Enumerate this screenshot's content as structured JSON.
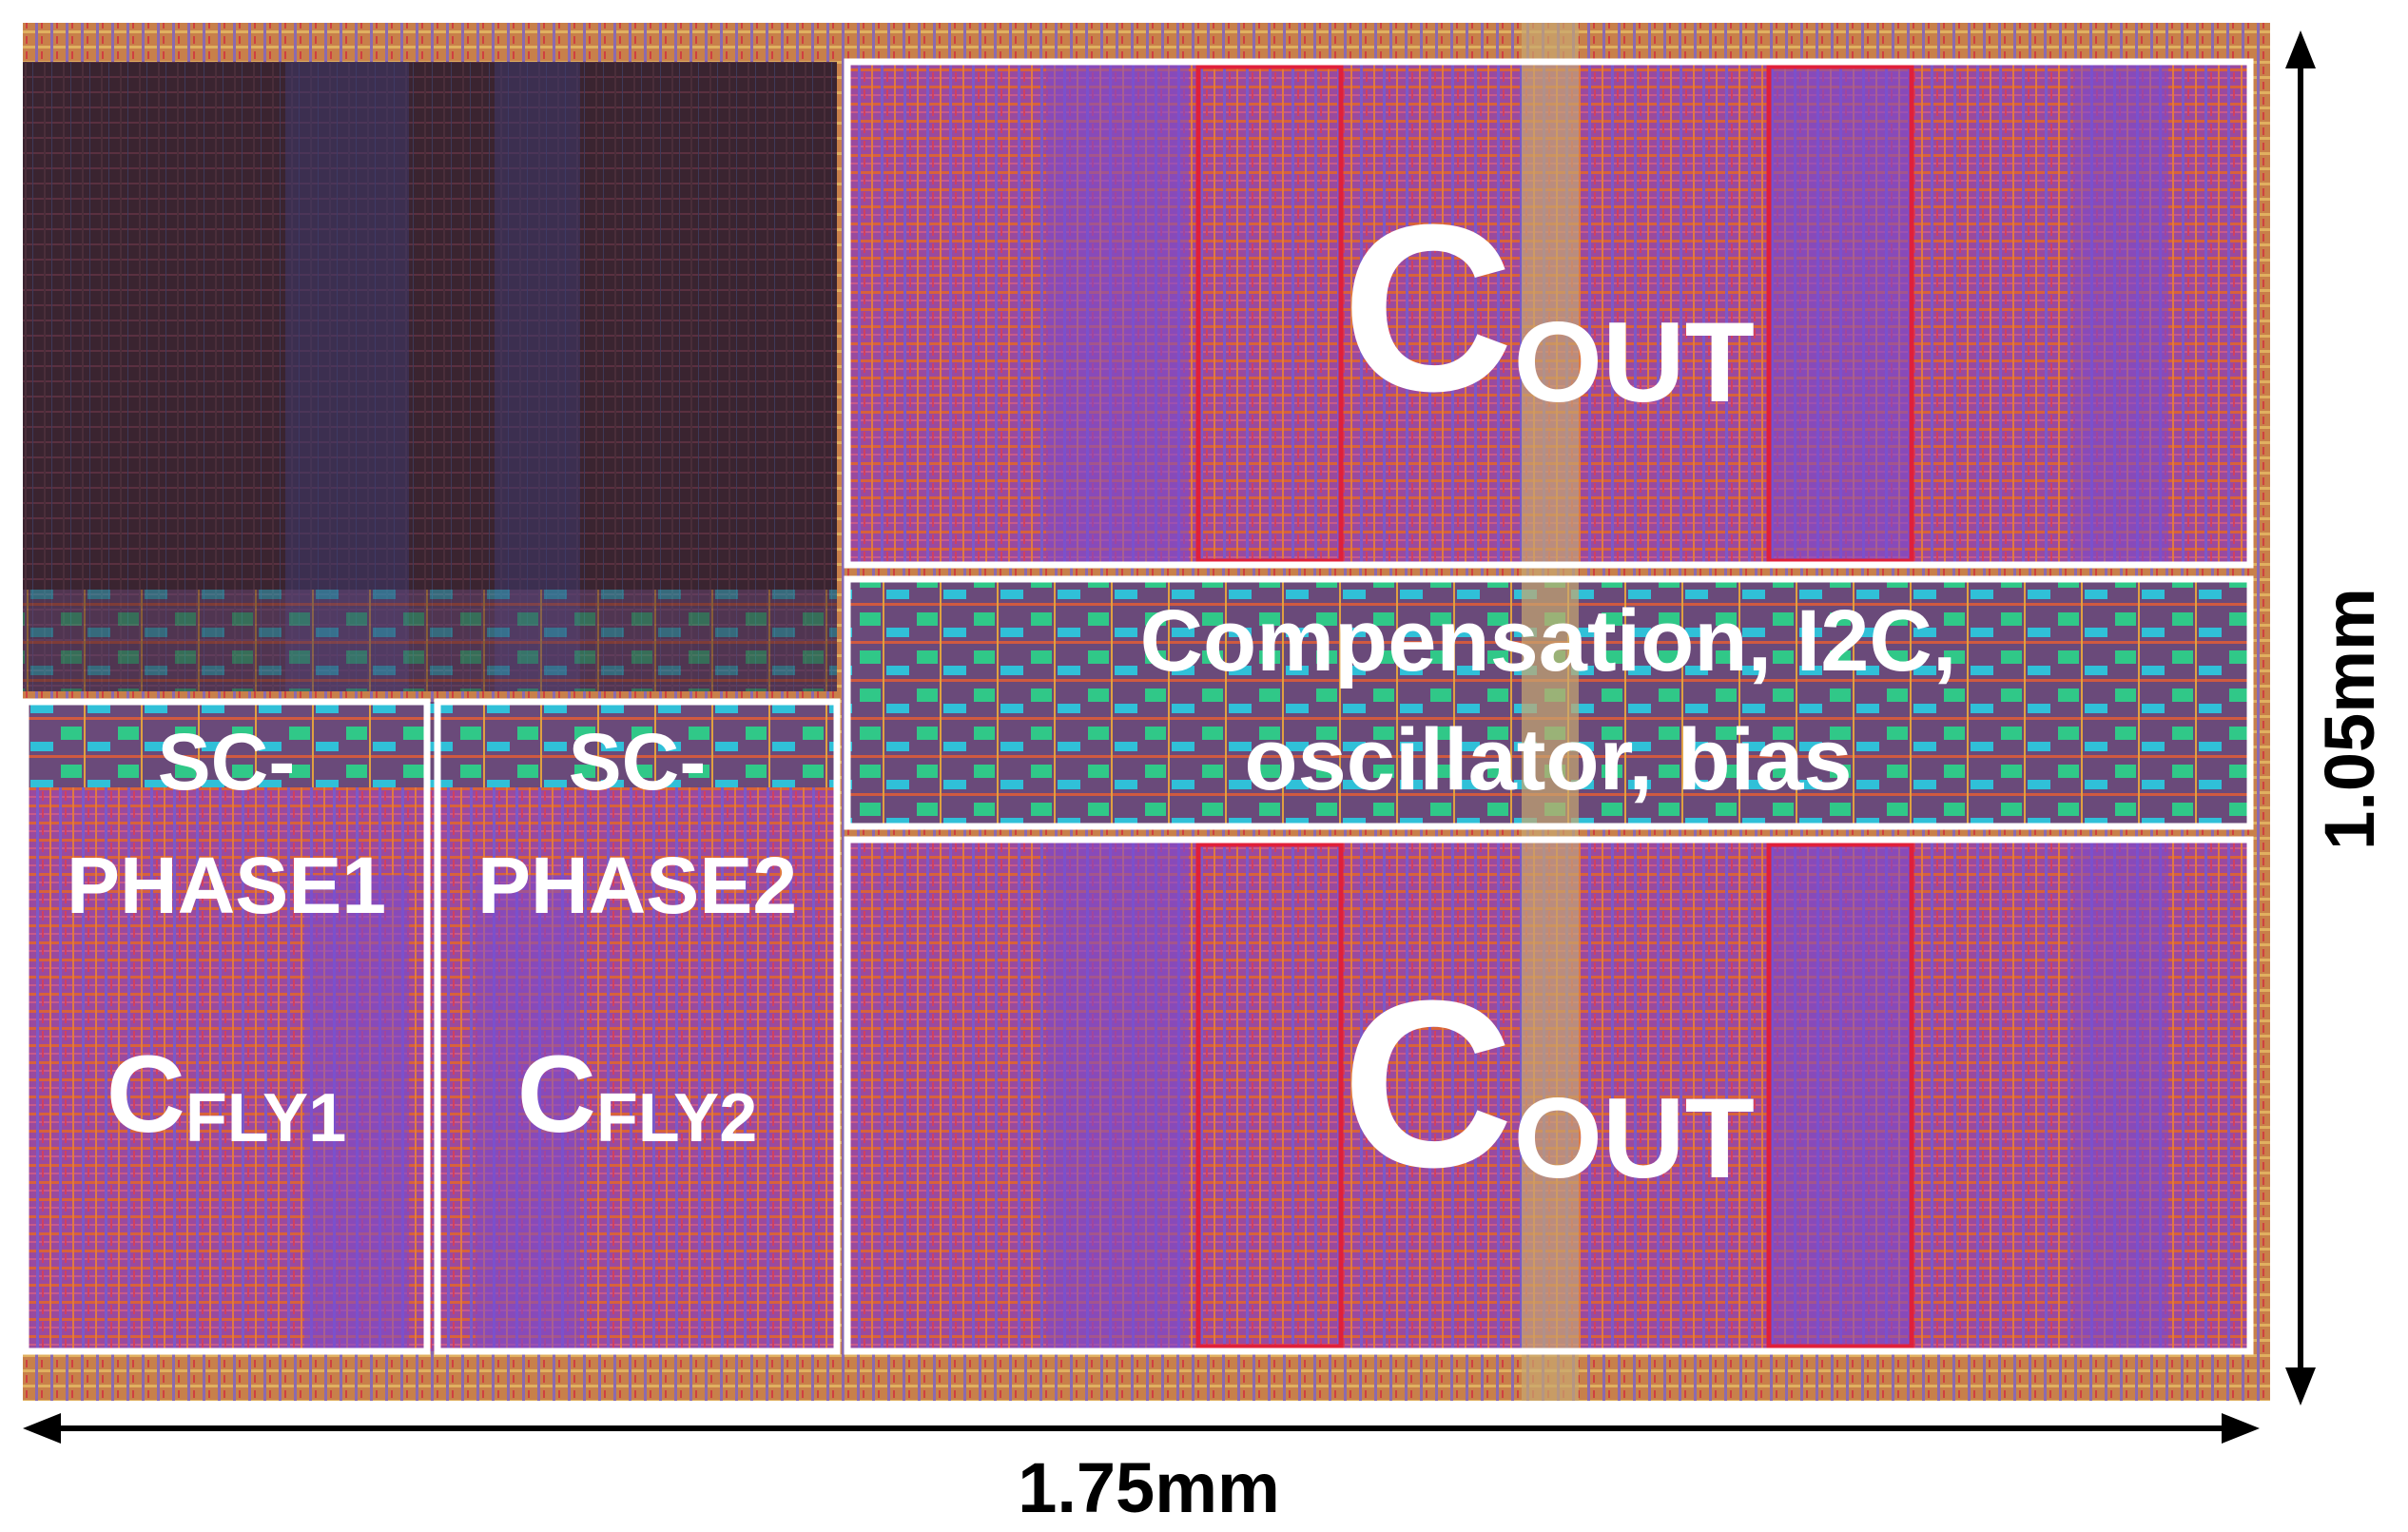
{
  "cout_top": {
    "main": "C",
    "sub": "OUT"
  },
  "control": {
    "line1": "Compensation, I2C,",
    "line2": "oscillator, bias"
  },
  "cout_bottom": {
    "main": "C",
    "sub": "OUT"
  },
  "phase1": {
    "title1": "SC-",
    "title2": "PHASE1",
    "main": "C",
    "sub": "FLY1"
  },
  "phase2": {
    "title1": "SC-",
    "title2": "PHASE2",
    "main": "C",
    "sub": "FLY2"
  },
  "dimensions": {
    "width": "1.75mm",
    "height": "1.05mm"
  }
}
